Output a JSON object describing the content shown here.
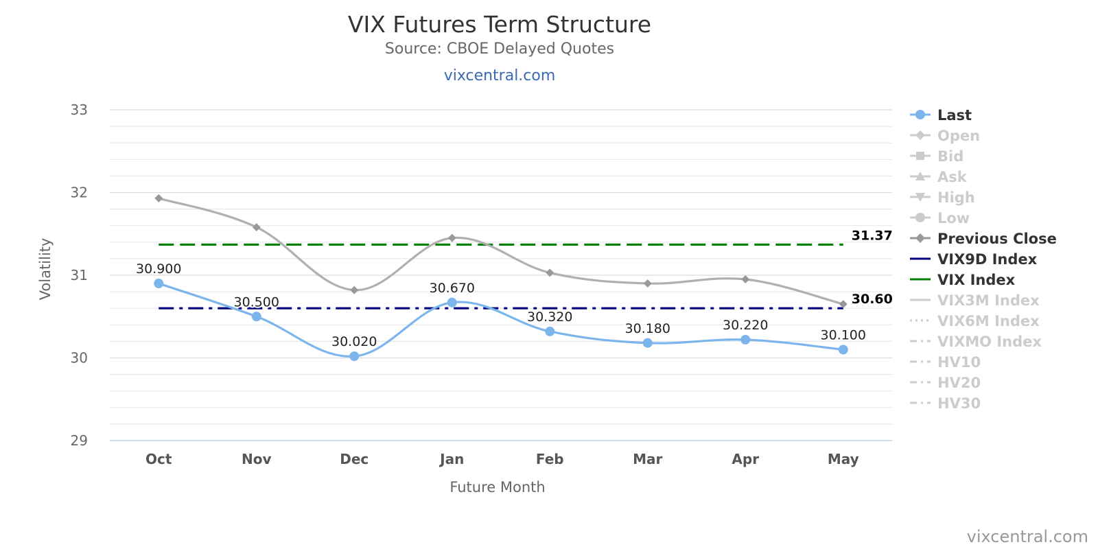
{
  "chart_data": {
    "type": "line",
    "title": "VIX Futures Term Structure",
    "subtitle": "Source: CBOE Delayed Quotes",
    "site_link": "vixcentral.com",
    "xlabel": "Future Month",
    "ylabel": "Volatility",
    "categories": [
      "Oct",
      "Nov",
      "Dec",
      "Jan",
      "Feb",
      "Mar",
      "Apr",
      "May"
    ],
    "ylim": [
      29,
      33
    ],
    "yticks": [
      "29",
      "30",
      "31",
      "32",
      "33"
    ],
    "grid": true,
    "legend_position": "right",
    "series": [
      {
        "name": "Last",
        "color": "#7cb5ec",
        "marker": "circle",
        "visible": true,
        "values": [
          30.9,
          30.5,
          30.02,
          30.67,
          30.32,
          30.18,
          30.22,
          30.1
        ],
        "labels": [
          "30.900",
          "30.500",
          "30.020",
          "30.670",
          "30.320",
          "30.180",
          "30.220",
          "30.100"
        ]
      },
      {
        "name": "Previous Close",
        "color": "#b0b0b0",
        "marker": "diamond",
        "visible": true,
        "values": [
          31.93,
          31.58,
          30.82,
          31.45,
          31.03,
          30.9,
          30.95,
          30.65
        ]
      },
      {
        "name": "VIX9D Index",
        "color": "#000080",
        "dash": "dashdot",
        "visible": true,
        "value": 30.6,
        "label": "30.60"
      },
      {
        "name": "VIX Index",
        "color": "#008000",
        "dash": "dash",
        "visible": true,
        "value": 31.37,
        "label": "31.37"
      }
    ],
    "legend": [
      {
        "name": "Last",
        "symbol": "circle",
        "active": true,
        "color": "#7cb5ec"
      },
      {
        "name": "Open",
        "symbol": "diamond",
        "active": false,
        "color": "#cccccc"
      },
      {
        "name": "Bid",
        "symbol": "square",
        "active": false,
        "color": "#cccccc"
      },
      {
        "name": "Ask",
        "symbol": "triangle",
        "active": false,
        "color": "#cccccc"
      },
      {
        "name": "High",
        "symbol": "triangle-down",
        "active": false,
        "color": "#cccccc"
      },
      {
        "name": "Low",
        "symbol": "circle",
        "active": false,
        "color": "#cccccc"
      },
      {
        "name": "Previous Close",
        "symbol": "diamond",
        "active": true,
        "color": "#999999"
      },
      {
        "name": "VIX9D Index",
        "symbol": "line",
        "active": true,
        "color": "#000080"
      },
      {
        "name": "VIX Index",
        "symbol": "line",
        "active": true,
        "color": "#008000"
      },
      {
        "name": "VIX3M Index",
        "symbol": "line",
        "active": false,
        "color": "#cccccc"
      },
      {
        "name": "VIX6M Index",
        "symbol": "dot",
        "active": false,
        "color": "#cccccc"
      },
      {
        "name": "VIXMO Index",
        "symbol": "dashdot",
        "active": false,
        "color": "#cccccc"
      },
      {
        "name": "HV10",
        "symbol": "dashdot",
        "active": false,
        "color": "#cccccc"
      },
      {
        "name": "HV20",
        "symbol": "dashdot",
        "active": false,
        "color": "#cccccc"
      },
      {
        "name": "HV30",
        "symbol": "dashdot",
        "active": false,
        "color": "#cccccc"
      }
    ]
  },
  "credits": "vixcentral.com"
}
